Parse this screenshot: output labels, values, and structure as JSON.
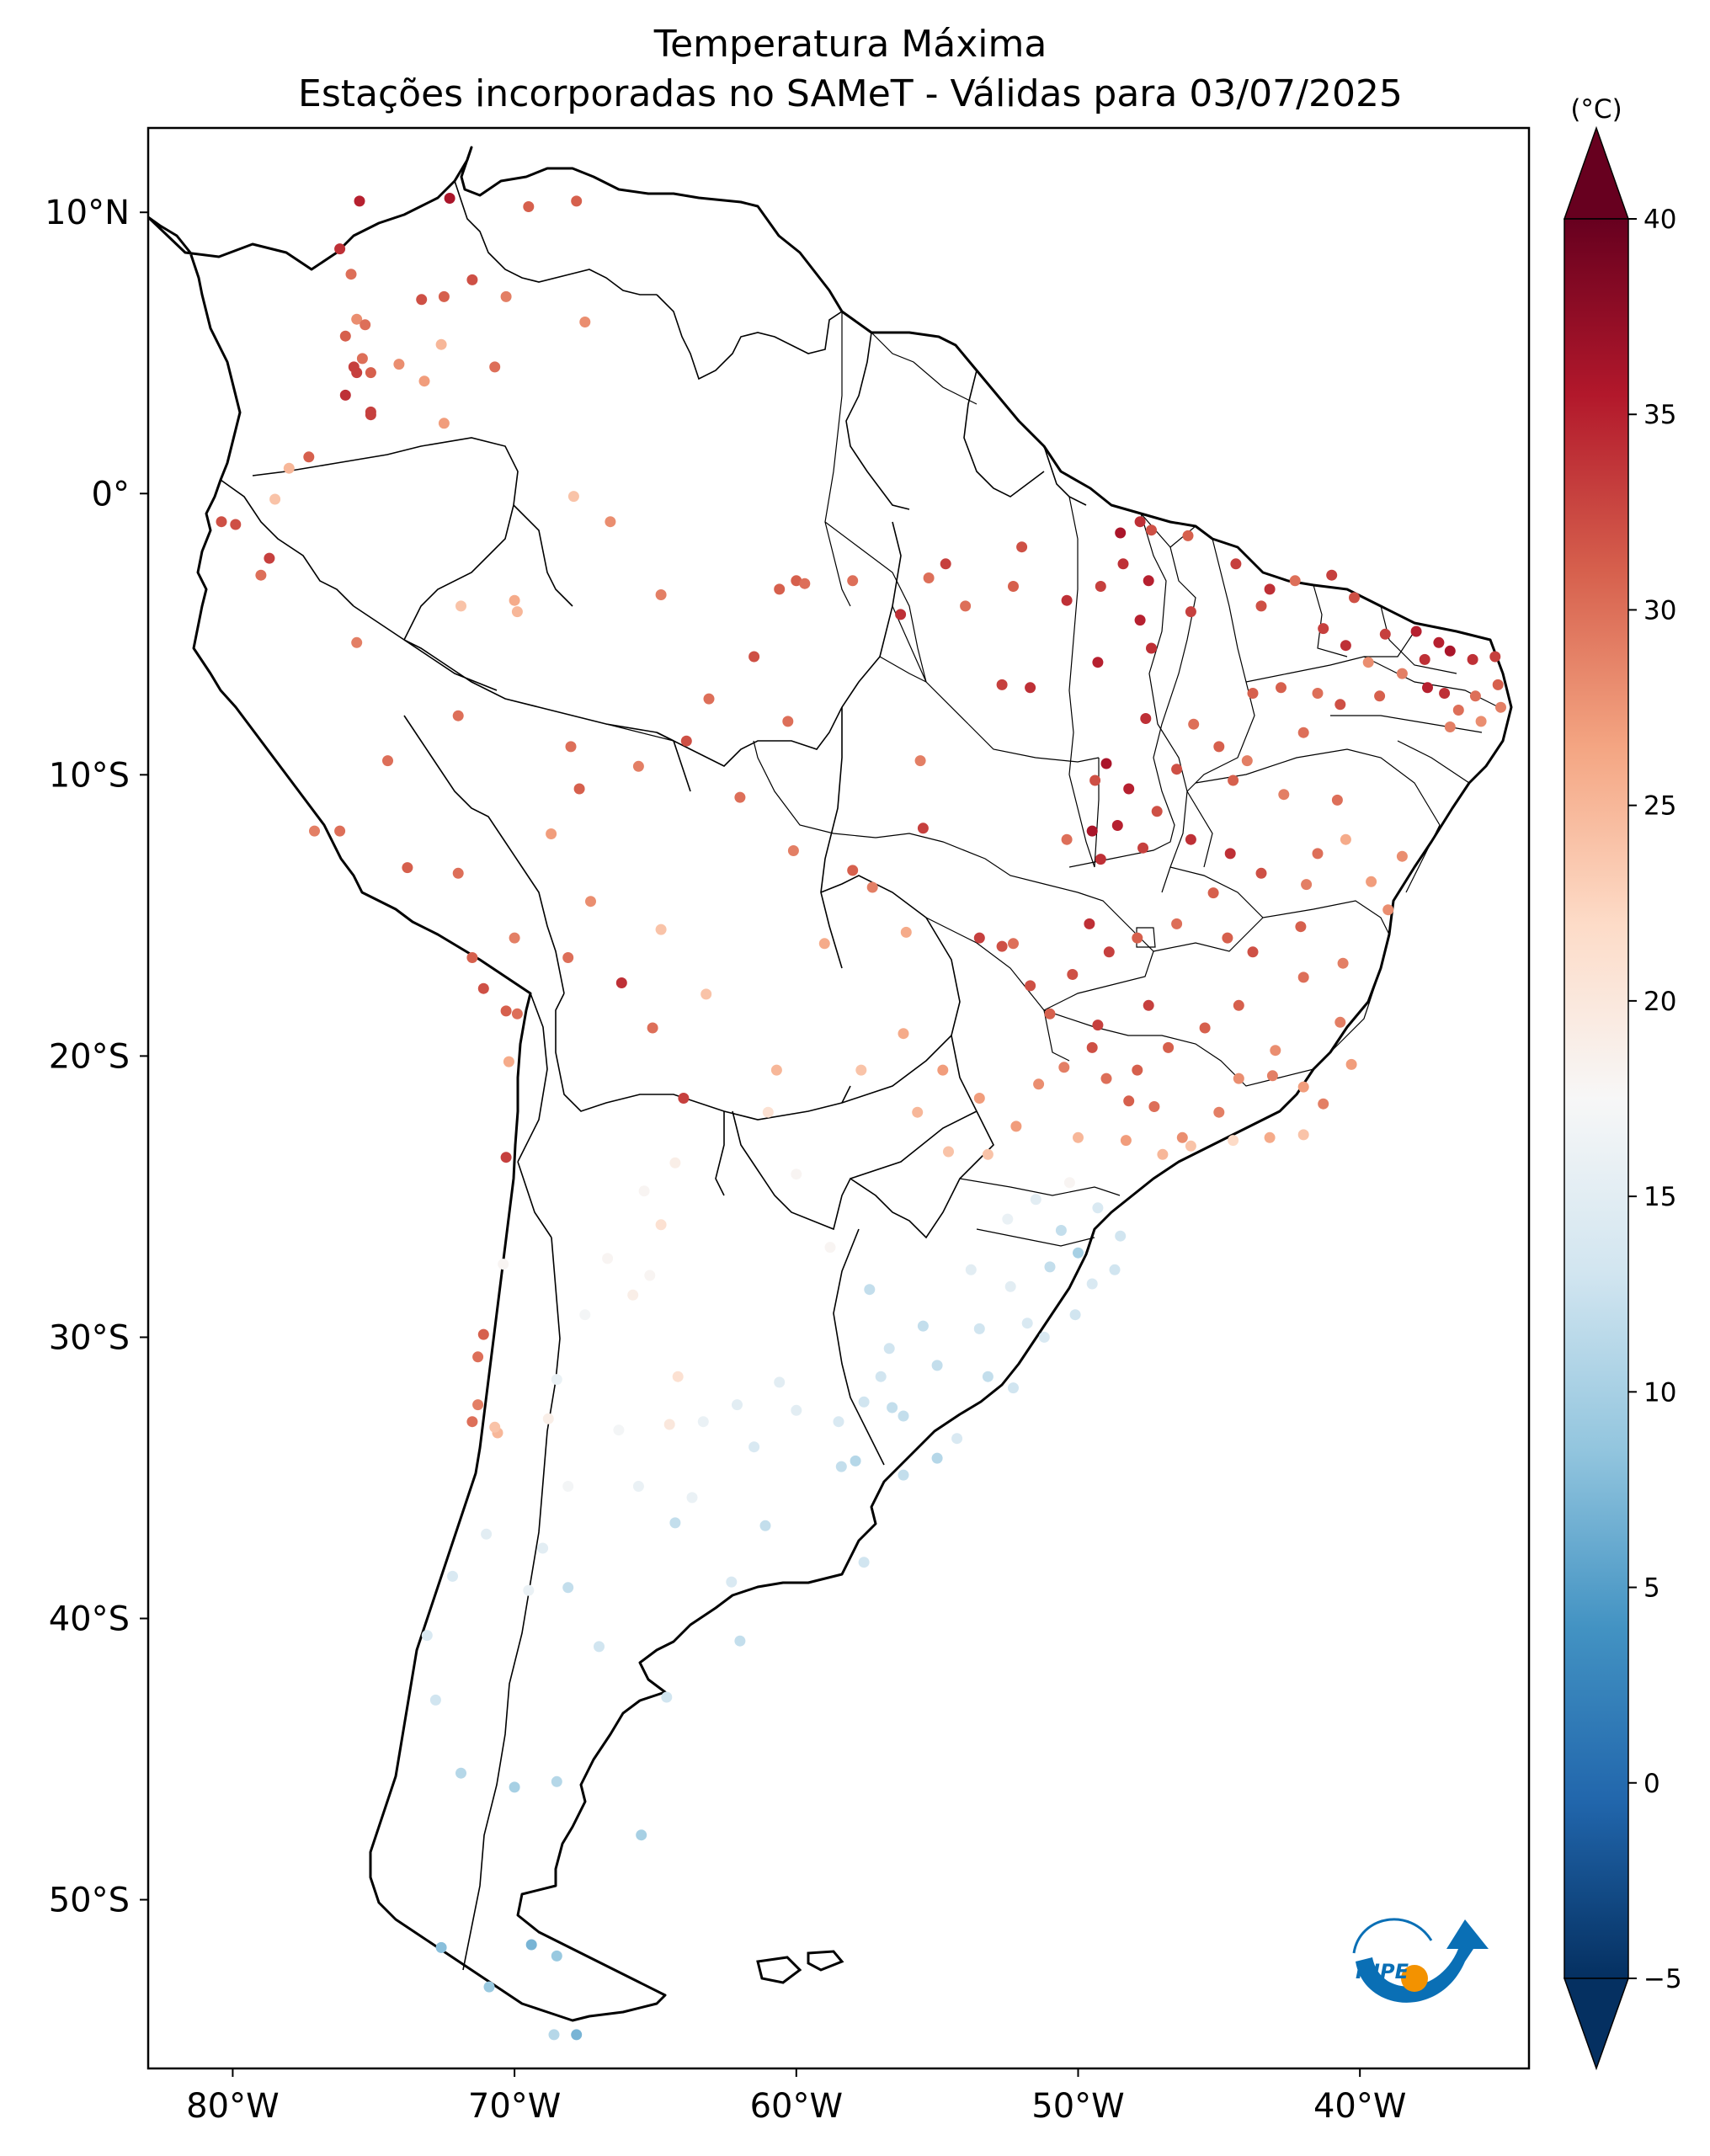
{
  "title": "Temperatura Máxima",
  "subtitle": "Estações incorporadas no SAMeT - Válidas para 03/07/2025",
  "map": {
    "lon_range": [
      -83,
      -34
    ],
    "lat_range": [
      -56,
      13
    ],
    "lat_ticks": [
      {
        "value": 10,
        "label": "10°N"
      },
      {
        "value": 0,
        "label": "0°"
      },
      {
        "value": -10,
        "label": "10°S"
      },
      {
        "value": -20,
        "label": "20°S"
      },
      {
        "value": -30,
        "label": "30°S"
      },
      {
        "value": -40,
        "label": "40°S"
      },
      {
        "value": -50,
        "label": "50°S"
      }
    ],
    "lon_ticks": [
      {
        "value": -80,
        "label": "80°W"
      },
      {
        "value": -70,
        "label": "70°W"
      },
      {
        "value": -60,
        "label": "60°W"
      },
      {
        "value": -50,
        "label": "50°W"
      },
      {
        "value": -40,
        "label": "40°W"
      }
    ]
  },
  "colorbar": {
    "unit": "(°C)",
    "min": -5,
    "max": 40,
    "extend": "both",
    "cmap": "RdBu_r",
    "ticks": [
      {
        "value": 40,
        "label": "40"
      },
      {
        "value": 35,
        "label": "35"
      },
      {
        "value": 30,
        "label": "30"
      },
      {
        "value": 25,
        "label": "25"
      },
      {
        "value": 20,
        "label": "20"
      },
      {
        "value": 15,
        "label": "15"
      },
      {
        "value": 10,
        "label": "10"
      },
      {
        "value": 5,
        "label": "5"
      },
      {
        "value": 0,
        "label": "0"
      },
      {
        "value": -5,
        "label": "−5"
      }
    ]
  },
  "logo": {
    "text": "INPE",
    "primary_color": "#0a6fb5",
    "accent_color": "#f39200"
  },
  "stations": [
    [
      -75.5,
      10.4,
      35
    ],
    [
      -72.3,
      10.5,
      36
    ],
    [
      -69.5,
      10.2,
      31
    ],
    [
      -67.8,
      10.4,
      31
    ],
    [
      -76.2,
      8.7,
      34
    ],
    [
      -75.8,
      7.8,
      30
    ],
    [
      -72.5,
      7.0,
      31
    ],
    [
      -73.3,
      6.9,
      32
    ],
    [
      -71.5,
      7.6,
      32
    ],
    [
      -70.3,
      7.0,
      29
    ],
    [
      -67.5,
      6.1,
      28
    ],
    [
      -75.6,
      6.2,
      28
    ],
    [
      -75.3,
      6.0,
      30
    ],
    [
      -76.0,
      5.6,
      31
    ],
    [
      -75.4,
      4.8,
      30
    ],
    [
      -74.1,
      4.6,
      28
    ],
    [
      -73.2,
      4.0,
      27
    ],
    [
      -72.6,
      5.3,
      25
    ],
    [
      -70.7,
      4.5,
      30
    ],
    [
      -75.7,
      4.5,
      33
    ],
    [
      -75.6,
      4.3,
      33
    ],
    [
      -75.1,
      4.3,
      31
    ],
    [
      -76.0,
      3.5,
      34
    ],
    [
      -75.1,
      2.9,
      33
    ],
    [
      -75.1,
      2.8,
      33
    ],
    [
      -72.5,
      2.5,
      27
    ],
    [
      -77.3,
      1.3,
      31
    ],
    [
      -78.0,
      0.9,
      25
    ],
    [
      -78.5,
      -0.2,
      24
    ],
    [
      -79.9,
      -1.1,
      32
    ],
    [
      -80.4,
      -1.0,
      32
    ],
    [
      -78.7,
      -2.3,
      33
    ],
    [
      -79.0,
      -2.9,
      30
    ],
    [
      -71.9,
      -4.0,
      24
    ],
    [
      -69.9,
      -4.2,
      25
    ],
    [
      -70.0,
      -3.8,
      26
    ],
    [
      -67.9,
      -0.1,
      24
    ],
    [
      -66.6,
      -1.0,
      28
    ],
    [
      -64.8,
      -3.6,
      29
    ],
    [
      -60.0,
      -3.1,
      31
    ],
    [
      -59.7,
      -3.2,
      30
    ],
    [
      -58.0,
      -3.1,
      30
    ],
    [
      -60.6,
      -3.4,
      31
    ],
    [
      -54.7,
      -2.5,
      33
    ],
    [
      -55.3,
      -3.0,
      30
    ],
    [
      -52.0,
      -1.9,
      32
    ],
    [
      -48.5,
      -1.4,
      36
    ],
    [
      -47.8,
      -1.0,
      34
    ],
    [
      -47.4,
      -1.3,
      32
    ],
    [
      -46.1,
      -1.5,
      31
    ],
    [
      -48.4,
      -2.5,
      34
    ],
    [
      -49.2,
      -3.3,
      33
    ],
    [
      -47.5,
      -3.1,
      35
    ],
    [
      -52.3,
      -3.3,
      31
    ],
    [
      -54.0,
      -4.0,
      30
    ],
    [
      -56.3,
      -4.3,
      34
    ],
    [
      -50.4,
      -3.8,
      34
    ],
    [
      -49.3,
      -6.0,
      35
    ],
    [
      -47.4,
      -5.5,
      34
    ],
    [
      -47.8,
      -4.5,
      35
    ],
    [
      -46.0,
      -4.2,
      33
    ],
    [
      -44.4,
      -2.5,
      33
    ],
    [
      -43.2,
      -3.4,
      34
    ],
    [
      -43.5,
      -4.0,
      32
    ],
    [
      -42.3,
      -3.1,
      30
    ],
    [
      -41.0,
      -2.9,
      33
    ],
    [
      -40.2,
      -3.7,
      32
    ],
    [
      -41.3,
      -4.8,
      33
    ],
    [
      -40.5,
      -5.4,
      34
    ],
    [
      -39.1,
      -5.0,
      33
    ],
    [
      -38.0,
      -4.9,
      35
    ],
    [
      -37.2,
      -5.3,
      35
    ],
    [
      -36.8,
      -5.6,
      36
    ],
    [
      -36.0,
      -5.9,
      34
    ],
    [
      -37.7,
      -5.9,
      34
    ],
    [
      -35.2,
      -5.8,
      33
    ],
    [
      -37.6,
      -6.9,
      35
    ],
    [
      -37.0,
      -7.1,
      34
    ],
    [
      -35.9,
      -7.2,
      30
    ],
    [
      -35.1,
      -6.8,
      31
    ],
    [
      -35.0,
      -7.6,
      29
    ],
    [
      -35.7,
      -8.1,
      28
    ],
    [
      -36.5,
      -7.7,
      30
    ],
    [
      -36.8,
      -8.3,
      29
    ],
    [
      -38.5,
      -6.4,
      29
    ],
    [
      -39.3,
      -7.2,
      31
    ],
    [
      -39.7,
      -6.0,
      28
    ],
    [
      -40.7,
      -7.5,
      32
    ],
    [
      -41.5,
      -7.1,
      30
    ],
    [
      -42.8,
      -6.9,
      31
    ],
    [
      -42.0,
      -8.5,
      30
    ],
    [
      -43.8,
      -7.1,
      31
    ],
    [
      -44.0,
      -9.5,
      29
    ],
    [
      -45.0,
      -9.0,
      31
    ],
    [
      -45.9,
      -8.2,
      30
    ],
    [
      -47.6,
      -8.0,
      34
    ],
    [
      -46.5,
      -9.8,
      32
    ],
    [
      -48.2,
      -10.5,
      35
    ],
    [
      -49.0,
      -9.6,
      36
    ],
    [
      -48.6,
      -11.8,
      35
    ],
    [
      -49.5,
      -12.0,
      36
    ],
    [
      -49.2,
      -13.0,
      34
    ],
    [
      -47.7,
      -12.6,
      33
    ],
    [
      -47.2,
      -11.3,
      32
    ],
    [
      -46.0,
      -12.3,
      34
    ],
    [
      -44.6,
      -12.8,
      34
    ],
    [
      -43.5,
      -13.5,
      32
    ],
    [
      -45.2,
      -14.2,
      31
    ],
    [
      -42.1,
      -15.4,
      31
    ],
    [
      -43.8,
      -16.3,
      32
    ],
    [
      -42.0,
      -17.2,
      30
    ],
    [
      -40.6,
      -16.7,
      29
    ],
    [
      -39.0,
      -14.8,
      28
    ],
    [
      -38.5,
      -12.9,
      28
    ],
    [
      -39.6,
      -13.8,
      27
    ],
    [
      -40.8,
      -10.9,
      30
    ],
    [
      -42.7,
      -10.7,
      29
    ],
    [
      -44.5,
      -10.2,
      31
    ],
    [
      -41.5,
      -12.8,
      30
    ],
    [
      -40.5,
      -12.3,
      26
    ],
    [
      -41.9,
      -13.9,
      29
    ],
    [
      -44.7,
      -15.8,
      31
    ],
    [
      -46.5,
      -15.3,
      30
    ],
    [
      -47.9,
      -15.8,
      31
    ],
    [
      -48.9,
      -16.3,
      33
    ],
    [
      -49.6,
      -15.3,
      34
    ],
    [
      -50.2,
      -17.1,
      32
    ],
    [
      -51.7,
      -17.5,
      32
    ],
    [
      -52.7,
      -16.1,
      32
    ],
    [
      -51.0,
      -18.5,
      31
    ],
    [
      -49.3,
      -18.9,
      33
    ],
    [
      -49.5,
      -19.7,
      32
    ],
    [
      -47.5,
      -18.2,
      33
    ],
    [
      -46.8,
      -19.7,
      31
    ],
    [
      -45.5,
      -19.0,
      31
    ],
    [
      -44.3,
      -18.2,
      31
    ],
    [
      -43.0,
      -19.8,
      28
    ],
    [
      -44.3,
      -20.8,
      28
    ],
    [
      -43.1,
      -20.7,
      29
    ],
    [
      -42.0,
      -21.1,
      27
    ],
    [
      -41.3,
      -21.7,
      29
    ],
    [
      -40.3,
      -20.3,
      27
    ],
    [
      -40.7,
      -18.8,
      29
    ],
    [
      -47.9,
      -20.5,
      31
    ],
    [
      -49.0,
      -20.8,
      30
    ],
    [
      -48.2,
      -21.6,
      31
    ],
    [
      -47.3,
      -21.8,
      30
    ],
    [
      -46.3,
      -22.9,
      28
    ],
    [
      -45.0,
      -22.0,
      29
    ],
    [
      -50.5,
      -20.4,
      29
    ],
    [
      -51.4,
      -21.0,
      28
    ],
    [
      -52.2,
      -22.5,
      27
    ],
    [
      -53.5,
      -21.5,
      27
    ],
    [
      -54.8,
      -20.5,
      27
    ],
    [
      -56.2,
      -19.2,
      26
    ],
    [
      -55.7,
      -22.0,
      25
    ],
    [
      -57.7,
      -20.5,
      24
    ],
    [
      -54.6,
      -23.4,
      24
    ],
    [
      -53.2,
      -23.5,
      24
    ],
    [
      -50.0,
      -22.9,
      25
    ],
    [
      -48.3,
      -23.0,
      27
    ],
    [
      -47.0,
      -23.5,
      25
    ],
    [
      -46.0,
      -23.2,
      24
    ],
    [
      -44.5,
      -23.0,
      22
    ],
    [
      -43.2,
      -22.9,
      26
    ],
    [
      -42.0,
      -22.8,
      24
    ],
    [
      -50.3,
      -24.5,
      18
    ],
    [
      -51.5,
      -25.1,
      15
    ],
    [
      -49.3,
      -25.4,
      14
    ],
    [
      -48.5,
      -26.4,
      13
    ],
    [
      -50.6,
      -26.2,
      12
    ],
    [
      -52.5,
      -25.8,
      16
    ],
    [
      -51.0,
      -27.5,
      12
    ],
    [
      -49.5,
      -28.1,
      14
    ],
    [
      -50.0,
      -27.0,
      10
    ],
    [
      -48.7,
      -27.6,
      13
    ],
    [
      -52.4,
      -28.2,
      15
    ],
    [
      -53.8,
      -27.6,
      15
    ],
    [
      -51.8,
      -29.5,
      14
    ],
    [
      -50.1,
      -29.2,
      13
    ],
    [
      -51.2,
      -30.0,
      14
    ],
    [
      -53.5,
      -29.7,
      13
    ],
    [
      -55.5,
      -29.6,
      12
    ],
    [
      -56.7,
      -30.4,
      13
    ],
    [
      -53.2,
      -31.4,
      12
    ],
    [
      -52.3,
      -31.8,
      13
    ],
    [
      -55.0,
      -31.0,
      12
    ],
    [
      -57.0,
      -31.4,
      13
    ],
    [
      -56.2,
      -32.8,
      12
    ],
    [
      -54.3,
      -33.6,
      14
    ],
    [
      -55.0,
      -34.3,
      11
    ],
    [
      -56.2,
      -34.9,
      12
    ],
    [
      -57.9,
      -34.4,
      11
    ],
    [
      -57.6,
      -32.3,
      13
    ],
    [
      -58.5,
      -33.0,
      14
    ],
    [
      -58.4,
      -34.6,
      12
    ],
    [
      -60.0,
      -32.6,
      15
    ],
    [
      -60.6,
      -31.6,
      15
    ],
    [
      -62.1,
      -32.4,
      15
    ],
    [
      -61.5,
      -33.9,
      14
    ],
    [
      -63.3,
      -33.0,
      16
    ],
    [
      -64.2,
      -31.4,
      21
    ],
    [
      -64.5,
      -33.1,
      20
    ],
    [
      -65.4,
      -24.8,
      18
    ],
    [
      -64.3,
      -23.8,
      19
    ],
    [
      -64.8,
      -26.0,
      21
    ],
    [
      -65.2,
      -27.8,
      18
    ],
    [
      -66.7,
      -27.2,
      18
    ],
    [
      -65.8,
      -28.5,
      19
    ],
    [
      -67.5,
      -29.2,
      17
    ],
    [
      -68.8,
      -32.9,
      19
    ],
    [
      -68.5,
      -31.5,
      16
    ],
    [
      -66.3,
      -33.3,
      17
    ],
    [
      -65.6,
      -35.3,
      16
    ],
    [
      -63.7,
      -35.7,
      16
    ],
    [
      -61.1,
      -36.7,
      12
    ],
    [
      -57.6,
      -38.0,
      13
    ],
    [
      -62.3,
      -38.7,
      14
    ],
    [
      -64.3,
      -36.6,
      12
    ],
    [
      -68.1,
      -38.9,
      12
    ],
    [
      -69.5,
      -39.0,
      16
    ],
    [
      -68.1,
      -35.3,
      17
    ],
    [
      -70.6,
      -33.4,
      25
    ],
    [
      -70.7,
      -33.2,
      24
    ],
    [
      -71.5,
      -33.0,
      30
    ],
    [
      -71.3,
      -32.4,
      29
    ],
    [
      -71.3,
      -30.7,
      30
    ],
    [
      -71.1,
      -29.9,
      31
    ],
    [
      -70.4,
      -27.4,
      18
    ],
    [
      -70.3,
      -23.6,
      33
    ],
    [
      -70.2,
      -20.2,
      26
    ],
    [
      -69.9,
      -18.5,
      30
    ],
    [
      -70.3,
      -18.4,
      31
    ],
    [
      -71.1,
      -17.6,
      32
    ],
    [
      -71.5,
      -16.5,
      31
    ],
    [
      -70.0,
      -15.8,
      29
    ],
    [
      -72.0,
      -13.5,
      30
    ],
    [
      -73.8,
      -13.3,
      31
    ],
    [
      -76.2,
      -12.0,
      30
    ],
    [
      -77.1,
      -12.0,
      29
    ],
    [
      -67.3,
      -14.5,
      28
    ],
    [
      -64.8,
      -15.5,
      24
    ],
    [
      -63.2,
      -17.8,
      24
    ],
    [
      -66.2,
      -17.4,
      34
    ],
    [
      -65.1,
      -19.0,
      30
    ],
    [
      -64.0,
      -21.5,
      33
    ],
    [
      -61.0,
      -22.0,
      21
    ],
    [
      -68.1,
      -16.5,
      30
    ],
    [
      -68.7,
      -12.1,
      27
    ],
    [
      -67.7,
      -10.5,
      31
    ],
    [
      -65.6,
      -9.7,
      29
    ],
    [
      -63.9,
      -8.8,
      32
    ],
    [
      -62.0,
      -10.8,
      30
    ],
    [
      -60.1,
      -12.7,
      29
    ],
    [
      -58.0,
      -13.4,
      31
    ],
    [
      -56.1,
      -15.6,
      26
    ],
    [
      -55.5,
      -11.9,
      33
    ],
    [
      -53.5,
      -15.8,
      33
    ],
    [
      -52.3,
      -16.0,
      30
    ],
    [
      -57.3,
      -14.0,
      29
    ],
    [
      -61.5,
      -5.8,
      32
    ],
    [
      -60.3,
      -8.1,
      30
    ],
    [
      -63.1,
      -7.3,
      30
    ],
    [
      -52.7,
      -6.8,
      33
    ],
    [
      -51.7,
      -6.9,
      34
    ],
    [
      -50.4,
      -12.3,
      30
    ],
    [
      -49.4,
      -10.2,
      32
    ],
    [
      -55.6,
      -9.5,
      29
    ],
    [
      -59.0,
      -16.0,
      26
    ],
    [
      -60.7,
      -20.5,
      25
    ],
    [
      -74.5,
      -9.5,
      30
    ],
    [
      -75.6,
      -5.3,
      29
    ],
    [
      -72.0,
      -7.9,
      30
    ],
    [
      -68.0,
      -9.0,
      30
    ],
    [
      -60.0,
      -24.2,
      18
    ],
    [
      -58.8,
      -26.8,
      18
    ],
    [
      -57.4,
      -28.3,
      12
    ],
    [
      -56.6,
      -32.5,
      12
    ],
    [
      -71.0,
      -37.0,
      15
    ],
    [
      -72.2,
      -38.5,
      14
    ],
    [
      -73.1,
      -40.6,
      14
    ],
    [
      -72.8,
      -42.9,
      13
    ],
    [
      -71.9,
      -45.5,
      11
    ],
    [
      -70.0,
      -46.0,
      10
    ],
    [
      -68.5,
      -45.8,
      11
    ],
    [
      -65.5,
      -47.7,
      10
    ],
    [
      -69.4,
      -51.6,
      7
    ],
    [
      -68.5,
      -52.0,
      9
    ],
    [
      -70.9,
      -53.1,
      9
    ],
    [
      -68.6,
      -54.8,
      11
    ],
    [
      -67.8,
      -54.8,
      7
    ],
    [
      -72.6,
      -51.7,
      8
    ],
    [
      -69.0,
      -37.5,
      15
    ],
    [
      -67.0,
      -41.0,
      13
    ],
    [
      -64.6,
      -42.8,
      13
    ],
    [
      -62.0,
      -40.8,
      12
    ]
  ]
}
